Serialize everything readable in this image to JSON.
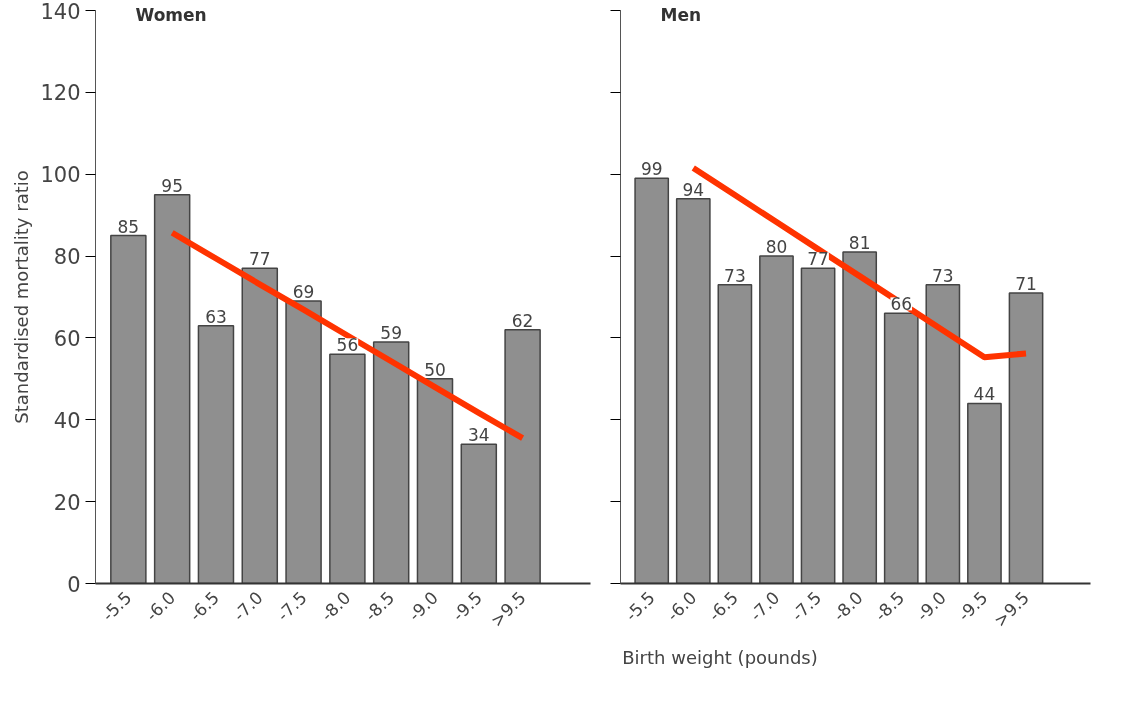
{
  "chart_data": [
    {
      "type": "bar",
      "title": "Women",
      "ylabel": "Standardised mortality ratio",
      "xlabel": "Birth weight (pounds)",
      "categories": [
        "-5.5",
        "-6.0",
        "-6.5",
        "-7.0",
        "-7.5",
        "-8.0",
        "-8.5",
        "-9.0",
        "-9.5",
        ">9.5"
      ],
      "series": [
        {
          "color": "#8f8f8f",
          "values": [
            85,
            95,
            63,
            77,
            69,
            56,
            59,
            50,
            34,
            62
          ],
          "value_labels": [
            "85",
            "95",
            "63",
            "77",
            "69",
            "56",
            "59",
            "50",
            "34",
            "62"
          ]
        },
        {
          "type": "line",
          "color": "#ff3300",
          "values": [
            null,
            85.7,
            79.4,
            73.1,
            66.9,
            60.6,
            54.3,
            48.0,
            41.7,
            35.5
          ]
        }
      ],
      "ylim": [
        0,
        140
      ],
      "yticks": [
        0,
        20,
        40,
        60,
        80,
        100,
        120,
        140
      ],
      "grid": false
    },
    {
      "type": "bar",
      "title": "Men",
      "categories": [
        "-5.5",
        "-6.0",
        "-6.5",
        "-7.0",
        "-7.5",
        "-8.0",
        "-8.5",
        "-9.0",
        "-9.5",
        ">9.5"
      ],
      "series": [
        {
          "color": "#8f8f8f",
          "values": [
            99,
            94,
            73,
            80,
            77,
            81,
            66,
            73,
            44,
            71
          ],
          "value_labels": [
            "99",
            "94",
            "73",
            "80",
            "77",
            "81",
            "66",
            "73",
            "44",
            "71"
          ]
        },
        {
          "type": "line",
          "color": "#ff3300",
          "values": [
            null,
            101.5,
            94.9,
            88.3,
            81.7,
            75.1,
            68.5,
            61.9,
            55.3,
            56.2
          ]
        }
      ],
      "ylim": [
        0,
        140
      ],
      "yticks": [
        0,
        20,
        40,
        60,
        80,
        100,
        120,
        140
      ],
      "tick_labels": "x",
      "grid": false
    }
  ]
}
